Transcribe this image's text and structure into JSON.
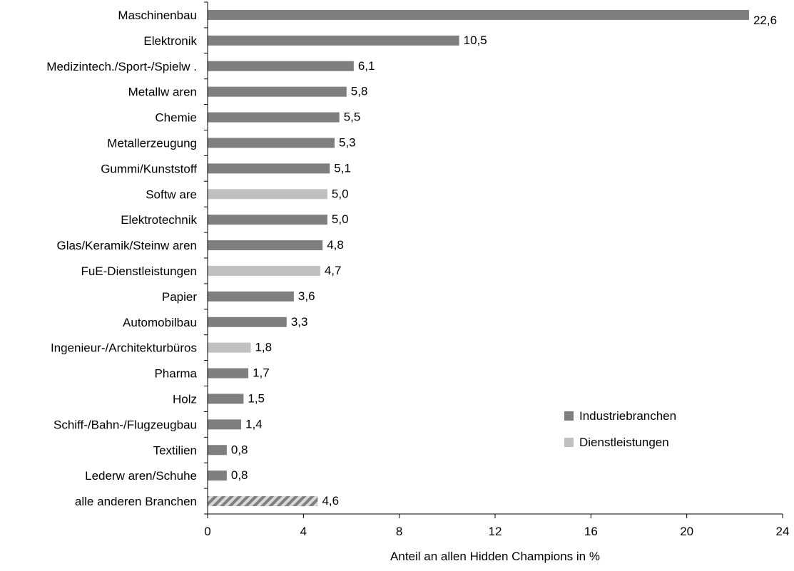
{
  "chart_data": {
    "type": "bar",
    "orientation": "horizontal",
    "xlabel": "Anteil an allen Hidden Champions in %",
    "ylabel": "",
    "title": "",
    "xlim": [
      0,
      24
    ],
    "xticks": [
      0,
      4,
      8,
      12,
      16,
      20,
      24
    ],
    "xtick_labels": [
      "0",
      "4",
      "8",
      "12",
      "16",
      "20",
      "24"
    ],
    "grid": false,
    "legend_position": "right",
    "colors": {
      "Industriebranchen": "#7f7f7f",
      "Dienstleistungen": "#c0c0c0",
      "hatched": "#a6a6a6"
    },
    "series": [
      {
        "name": "Industriebranchen",
        "color": "#7f7f7f"
      },
      {
        "name": "Dienstleistungen",
        "color": "#c0c0c0"
      }
    ],
    "categories": [
      "Maschinenbau",
      "Elektronik",
      "Medizintech./Sport-/Spielw .",
      "Metallw aren",
      "Chemie",
      "Metallerzeugung",
      "Gummi/Kunststoff",
      "Softw are",
      "Elektrotechnik",
      "Glas/Keramik/Steinw aren",
      "FuE-Dienstleistungen",
      "Papier",
      "Automobilbau",
      "Ingenieur-/Architekturbüros",
      "Pharma",
      "Holz",
      "Schiff-/Bahn-/Flugzeugbau",
      "Textilien",
      "Lederw aren/Schuhe",
      "alle anderen Branchen"
    ],
    "values": [
      22.6,
      10.5,
      6.1,
      5.8,
      5.5,
      5.3,
      5.1,
      5.0,
      5.0,
      4.8,
      4.7,
      3.6,
      3.3,
      1.8,
      1.7,
      1.5,
      1.4,
      0.8,
      0.8,
      4.6
    ],
    "value_labels": [
      "22,6",
      "10,5",
      "6,1",
      "5,8",
      "5,5",
      "5,3",
      "5,1",
      "5,0",
      "5,0",
      "4,8",
      "4,7",
      "3,6",
      "3,3",
      "1,8",
      "1,7",
      "1,5",
      "1,4",
      "0,8",
      "0,8",
      "4,6"
    ],
    "bar_series": [
      "Industriebranchen",
      "Industriebranchen",
      "Industriebranchen",
      "Industriebranchen",
      "Industriebranchen",
      "Industriebranchen",
      "Industriebranchen",
      "Dienstleistungen",
      "Industriebranchen",
      "Industriebranchen",
      "Dienstleistungen",
      "Industriebranchen",
      "Industriebranchen",
      "Dienstleistungen",
      "Industriebranchen",
      "Industriebranchen",
      "Industriebranchen",
      "Industriebranchen",
      "Industriebranchen",
      "hatched"
    ]
  }
}
